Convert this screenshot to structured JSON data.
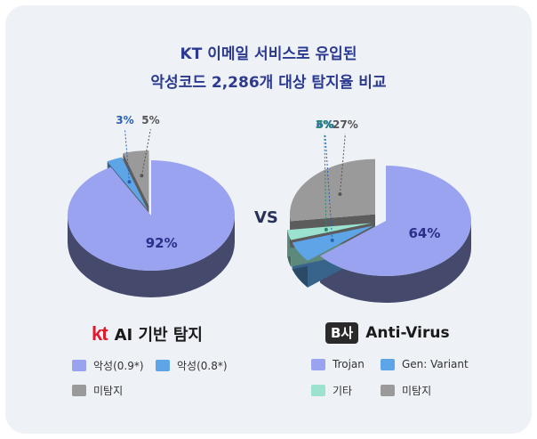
{
  "title": {
    "line1": "KT 이메일 서비스로 유입된",
    "line2": "악성코드 2,286개 대상 탐지율 비교"
  },
  "vs_label": "VS",
  "chart_data": [
    {
      "type": "pie",
      "brand": {
        "logo": "kt",
        "text": "AI 기반 탐지"
      },
      "slices": [
        {
          "label": "악성(0.9*)",
          "value": 92,
          "value_label": "92%",
          "color": "#9aa3ef"
        },
        {
          "label": "악성(0.8*)",
          "value": 3,
          "value_label": "3%",
          "color": "#5ea5e8"
        },
        {
          "label": "미탐지",
          "value": 5,
          "value_label": "5%",
          "color": "#9a9a9a"
        }
      ]
    },
    {
      "type": "pie",
      "brand": {
        "logo": "B사",
        "text": "Anti-Virus"
      },
      "slices": [
        {
          "label": "Trojan",
          "value": 64,
          "value_label": "64%",
          "color": "#9aa3ef"
        },
        {
          "label": "Gen: Variant",
          "value": 6,
          "value_label": "6%",
          "color": "#5ea5e8"
        },
        {
          "label": "기타",
          "value": 3,
          "value_label": "3%",
          "color": "#9be2cf"
        },
        {
          "label": "미탐지",
          "value": 27,
          "value_label": "27%",
          "color": "#9a9a9a"
        }
      ]
    }
  ],
  "colors": {
    "title": "#2b3a8f",
    "label_purple": "#2a2f8a",
    "label_blue": "#2a5fb0",
    "label_teal": "#2a8a72",
    "label_gray": "#555555"
  }
}
